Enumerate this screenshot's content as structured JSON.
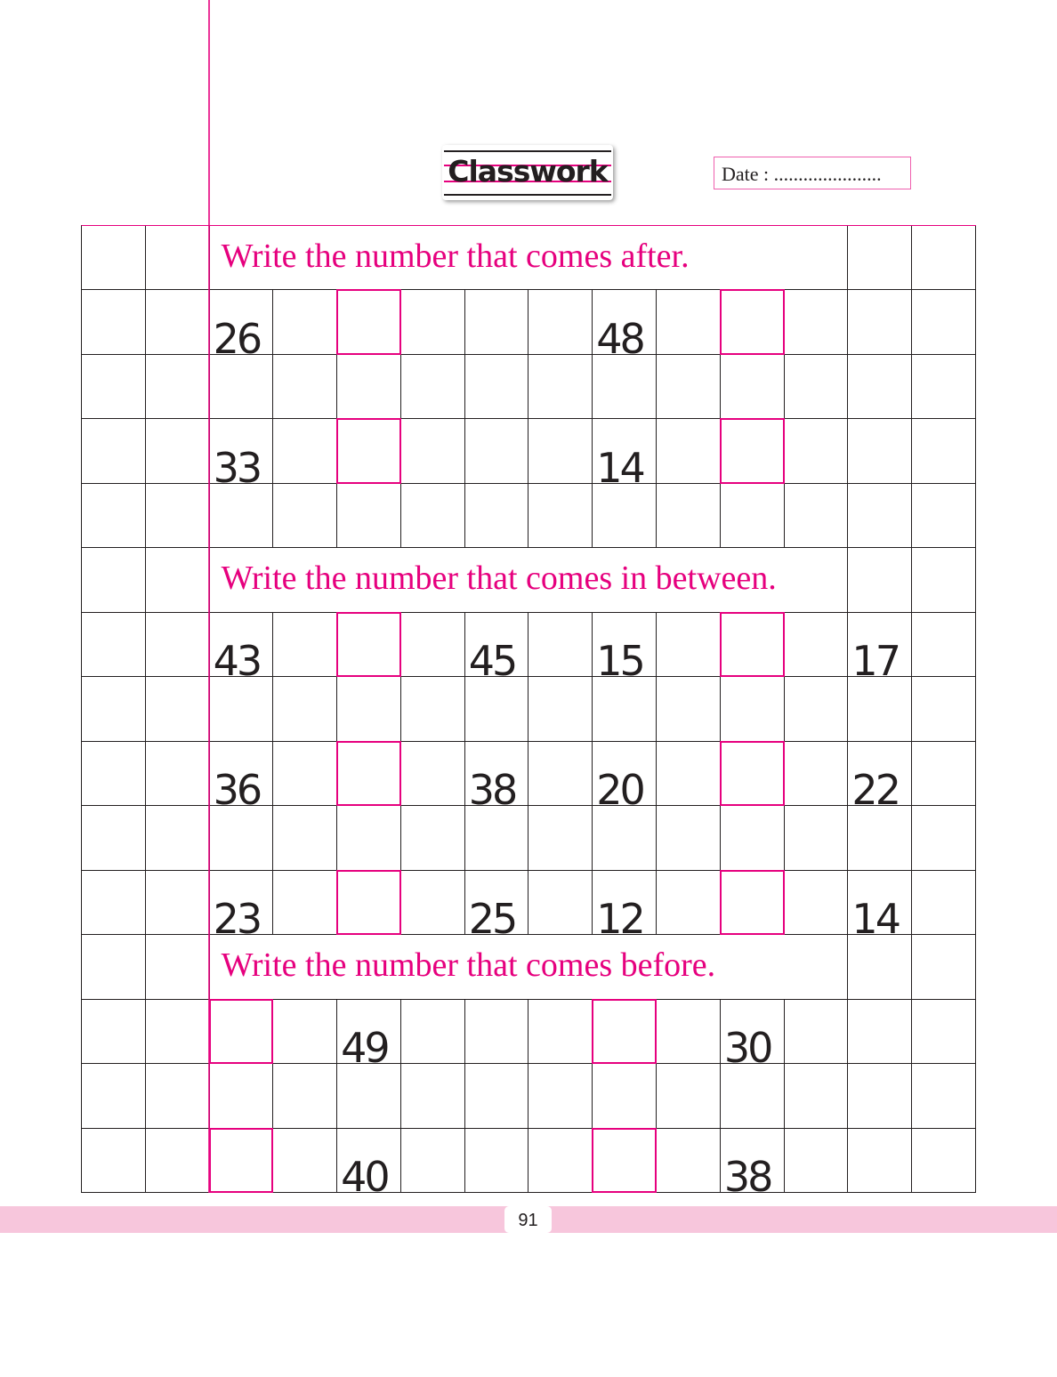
{
  "header": {
    "title": "Classwork",
    "date_label": "Date : ......................"
  },
  "colors": {
    "accent": "#e6007e",
    "band": "#f7c6dc",
    "ink": "#231f20"
  },
  "sections": [
    {
      "instruction": "Write the number that comes after.",
      "rows": [
        [
          "26",
          "",
          "48",
          ""
        ],
        [
          "33",
          "",
          "14",
          ""
        ]
      ]
    },
    {
      "instruction": "Write the number that comes in between.",
      "rows": [
        [
          "43",
          "",
          "45",
          "15",
          "",
          "17"
        ],
        [
          "36",
          "",
          "38",
          "20",
          "",
          "22"
        ],
        [
          "23",
          "",
          "25",
          "12",
          "",
          "14"
        ]
      ]
    },
    {
      "instruction": "Write the number that comes before.",
      "rows": [
        [
          "",
          "49",
          "",
          "30"
        ],
        [
          "",
          "40",
          "",
          "38"
        ]
      ]
    }
  ],
  "footer": {
    "page_number": "91"
  }
}
